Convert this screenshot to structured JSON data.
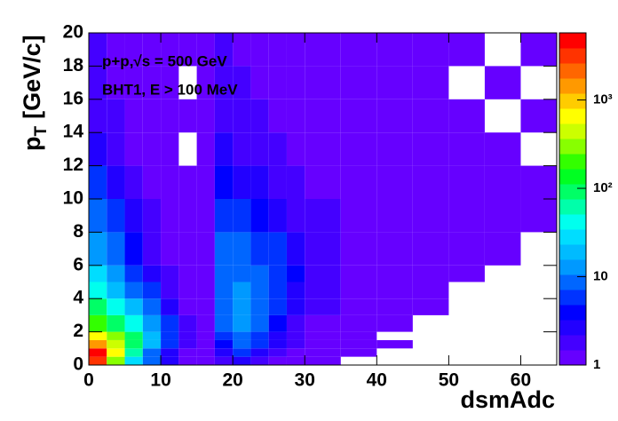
{
  "chart_data": {
    "type": "heatmap",
    "xlabel": "dsmAdc",
    "ylabel": {
      "text": "p",
      "subscript": "T",
      "unit": "[GeV/c]"
    },
    "annotations": [
      "p+p,√s = 500 GeV",
      "BHT1, E > 100 MeV"
    ],
    "x_bins": [
      0,
      2.5,
      5,
      7.5,
      10,
      12.5,
      15,
      17.5,
      20,
      22.5,
      25,
      27.5,
      30,
      35,
      40,
      45,
      50,
      55,
      60,
      65
    ],
    "y_bins": [
      0,
      0.5,
      1,
      1.5,
      2,
      3,
      4,
      5,
      6,
      8,
      10,
      12,
      14,
      16,
      18,
      20
    ],
    "counts": [
      [
        3000,
        300,
        30,
        8,
        3,
        1,
        1,
        2,
        3,
        2,
        1,
        1,
        1,
        0,
        0,
        0,
        0,
        0,
        0
      ],
      [
        4000,
        800,
        60,
        10,
        3,
        1,
        1,
        3,
        5,
        3,
        2,
        1,
        1,
        1,
        0,
        0,
        0,
        0,
        0
      ],
      [
        1500,
        500,
        100,
        20,
        5,
        2,
        1,
        4,
        8,
        5,
        3,
        2,
        1,
        1,
        1,
        0,
        0,
        0,
        0
      ],
      [
        600,
        300,
        80,
        20,
        6,
        2,
        1,
        5,
        10,
        6,
        3,
        2,
        1,
        1,
        0,
        0,
        0,
        0,
        0
      ],
      [
        200,
        100,
        40,
        15,
        5,
        2,
        1,
        8,
        12,
        8,
        4,
        2,
        1,
        1,
        1,
        0,
        0,
        0,
        0
      ],
      [
        80,
        40,
        20,
        8,
        3,
        1,
        1,
        10,
        15,
        10,
        5,
        3,
        2,
        1,
        1,
        1,
        0,
        0,
        0
      ],
      [
        40,
        20,
        10,
        5,
        2,
        1,
        1,
        10,
        12,
        10,
        6,
        3,
        2,
        1,
        1,
        1,
        0,
        0,
        0
      ],
      [
        25,
        12,
        6,
        3,
        2,
        1,
        1,
        10,
        10,
        8,
        6,
        4,
        2,
        1,
        1,
        1,
        1,
        0,
        0
      ],
      [
        15,
        8,
        4,
        2,
        1,
        1,
        1,
        8,
        8,
        6,
        5,
        3,
        2,
        1,
        1,
        1,
        1,
        1,
        0
      ],
      [
        8,
        5,
        3,
        2,
        1,
        1,
        1,
        6,
        5,
        4,
        3,
        2,
        2,
        1,
        1,
        1,
        1,
        1,
        1
      ],
      [
        5,
        3,
        2,
        1,
        1,
        1,
        1,
        4,
        3,
        3,
        2,
        2,
        1,
        1,
        1,
        1,
        1,
        1,
        1
      ],
      [
        3,
        2,
        1,
        1,
        1,
        0,
        1,
        3,
        2,
        2,
        2,
        1,
        1,
        1,
        1,
        1,
        1,
        1,
        0
      ],
      [
        2,
        2,
        1,
        1,
        1,
        1,
        1,
        2,
        2,
        2,
        1,
        1,
        1,
        1,
        1,
        1,
        1,
        0,
        1
      ],
      [
        2,
        1,
        1,
        1,
        1,
        0,
        1,
        2,
        2,
        1,
        1,
        1,
        1,
        1,
        1,
        1,
        0,
        1,
        0
      ],
      [
        2,
        1,
        1,
        1,
        1,
        1,
        1,
        2,
        1,
        1,
        1,
        1,
        1,
        1,
        1,
        1,
        1,
        0,
        1
      ]
    ],
    "xlim": [
      0,
      65
    ],
    "xticks": [
      0,
      10,
      20,
      30,
      40,
      50,
      60
    ],
    "ylim": [
      0,
      20
    ],
    "yticks": [
      0,
      2,
      4,
      6,
      8,
      10,
      12,
      14,
      16,
      18,
      20
    ],
    "zlim": [
      1,
      5750
    ],
    "zlog": true,
    "zticks": [
      1,
      10,
      {
        "value": 100,
        "label": "10²"
      },
      {
        "value": 1000,
        "label": "10³"
      }
    ],
    "palette": [
      "#6600ff",
      "#4400ff",
      "#2200ff",
      "#0000ff",
      "#0033ff",
      "#0066ff",
      "#0099ff",
      "#00bbff",
      "#00ddff",
      "#00ffee",
      "#00ffaa",
      "#00ff66",
      "#00ff22",
      "#33ff00",
      "#88ff00",
      "#ccff00",
      "#ffff00",
      "#ffcc00",
      "#ff9900",
      "#ff6600",
      "#ff3300",
      "#ff0000"
    ]
  }
}
